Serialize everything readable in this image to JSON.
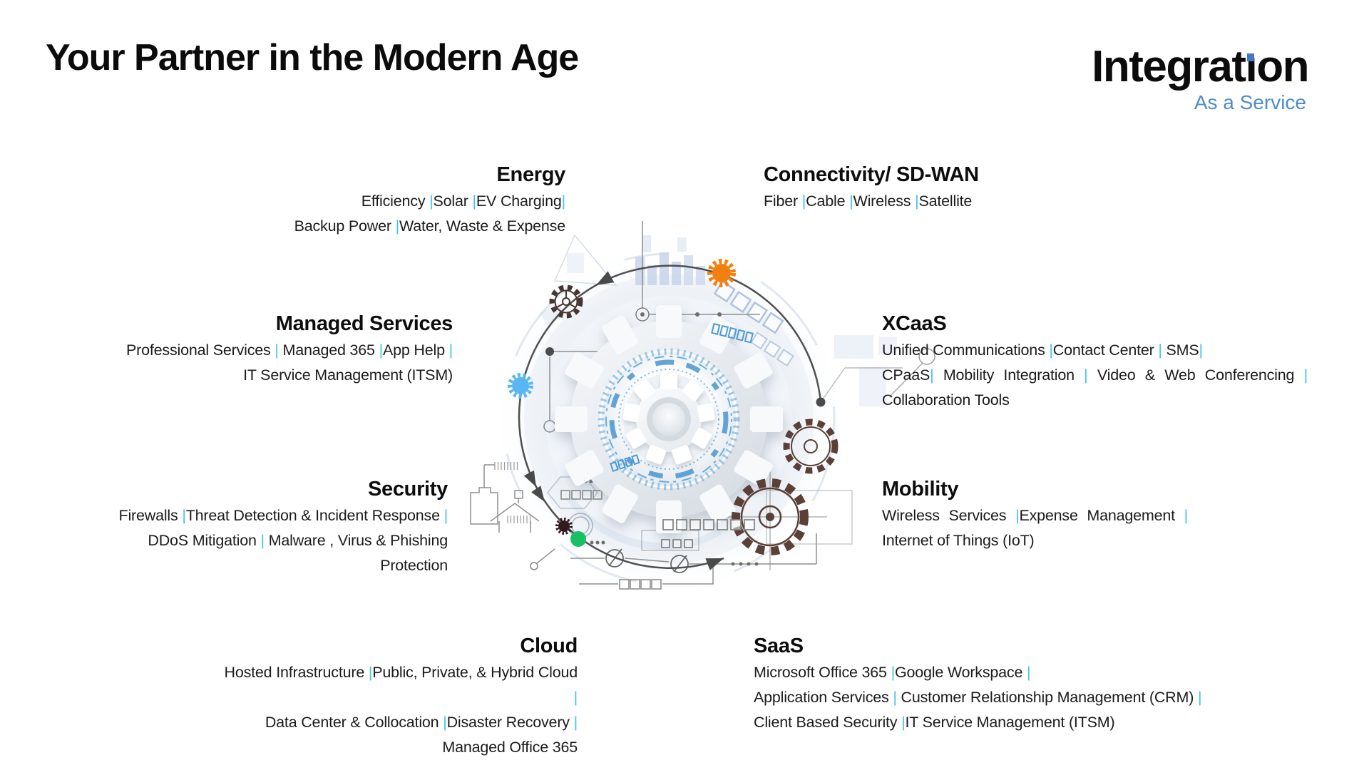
{
  "page": {
    "title": "Your Partner in the Modern Age"
  },
  "logo": {
    "text": "Integration",
    "part1": "Integrat",
    "part2": "on",
    "tagline": "As a Service"
  },
  "colors": {
    "sep": "#45C2F0",
    "logoblue": "#4578C8",
    "tagline": "#4D8CCB",
    "orange": "#F28011",
    "blue": "#58B7F3",
    "green": "#17C064",
    "maroon": "#321A1E",
    "brown": "#5A4037",
    "darkbrown": "#473530",
    "arc": "#4F4F4F"
  },
  "icons": [
    "orange-gear-icon",
    "blue-gear-icon",
    "maroon-gear-icon",
    "green-node-icon",
    "outline-gear-icon",
    "brown-gear-icon",
    "cycle-arrow-icon"
  ],
  "sections": [
    {
      "id": "energy",
      "title": "Energy",
      "lines": [
        {
          "text": "Efficiency |Solar |EV Charging|"
        },
        {
          "text": "Backup Power |Water, Waste & Expense"
        }
      ]
    },
    {
      "id": "connectivity",
      "title": "Connectivity/ SD-WAN",
      "lines": [
        {
          "text": "Fiber |Cable |Wireless |Satellite"
        }
      ]
    },
    {
      "id": "managed",
      "title": "Managed Services",
      "lines": [
        {
          "text": "Professional Services | Managed 365 |App Help |"
        },
        {
          "text": "IT Service Management (ITSM)"
        }
      ]
    },
    {
      "id": "xcaas",
      "title": "XCaaS",
      "lines": [
        {
          "text": "Unified Communications |Contact Center | SMS|"
        },
        {
          "text": "CPaaS| Mobility Integration | Video & Web Conferencing |",
          "justify": true
        },
        {
          "text": "Collaboration Tools"
        }
      ]
    },
    {
      "id": "security",
      "title": "Security",
      "lines": [
        {
          "text": "Firewalls |Threat Detection & Incident Response |"
        },
        {
          "text": "DDoS Mitigation | Malware , Virus & Phishing Protection"
        }
      ]
    },
    {
      "id": "mobility",
      "title": "Mobility",
      "lines": [
        {
          "text": "Wireless Services |Expense Management |",
          "justify": true
        },
        {
          "text": "Internet of Things (IoT)"
        }
      ]
    },
    {
      "id": "cloud",
      "title": "Cloud",
      "lines": [
        {
          "text": "Hosted Infrastructure |Public, Private, & Hybrid Cloud |"
        },
        {
          "text": "Data Center & Collocation |Disaster Recovery |"
        },
        {
          "text": "Managed Office 365"
        }
      ]
    },
    {
      "id": "saas",
      "title": "SaaS",
      "lines": [
        {
          "text": "Microsoft Office 365 |Google Workspace |"
        },
        {
          "text": "Application Services | Customer Relationship Management (CRM) |"
        },
        {
          "text": "Client Based Security |IT Service Management (ITSM)"
        }
      ]
    }
  ]
}
